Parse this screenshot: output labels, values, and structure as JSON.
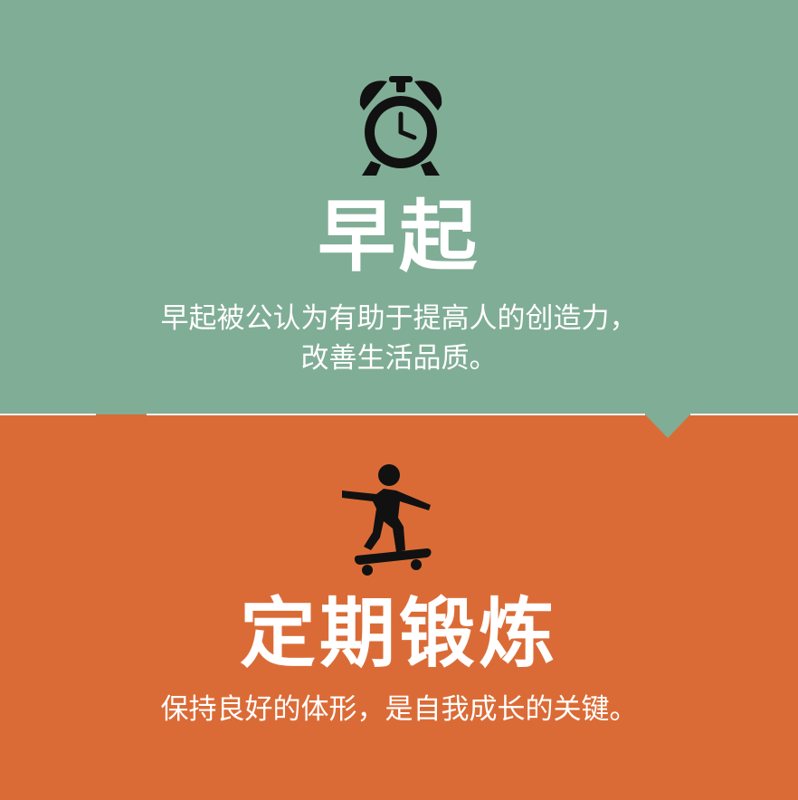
{
  "colors": {
    "top_background": "#80ad95",
    "bottom_background": "#db6b36",
    "text": "#ffffff",
    "icon": "#111111"
  },
  "sections": [
    {
      "icon": "alarm-clock-icon",
      "title": "早起",
      "description_line1": "早起被公认为有助于提高人的创造力，",
      "description_line2": "改善生活品质。"
    },
    {
      "icon": "skateboarder-icon",
      "title": "定期锻炼",
      "description_line1": "保持良好的体形，是自我成长的关键。"
    }
  ]
}
